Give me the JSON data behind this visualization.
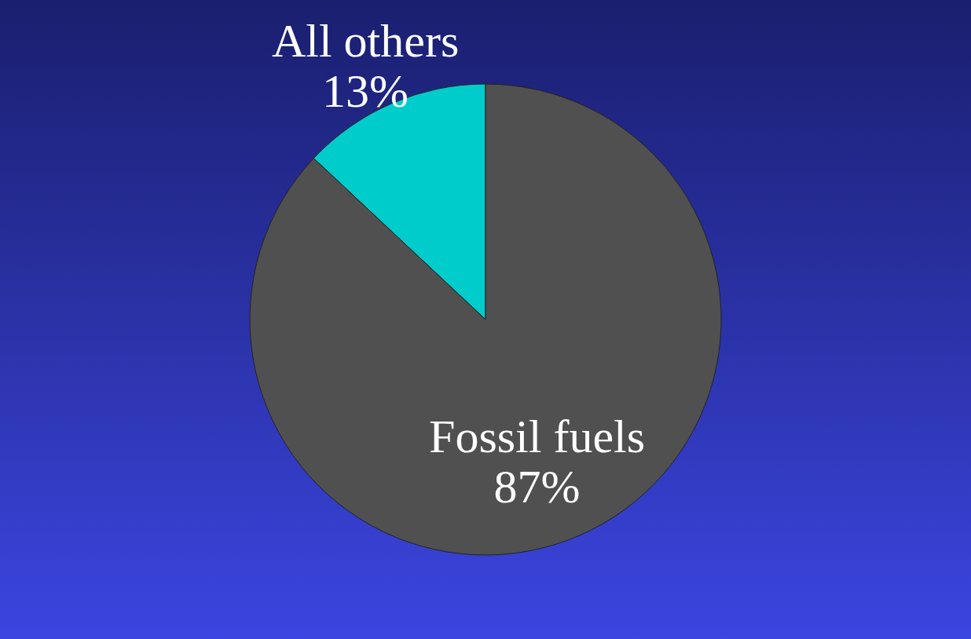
{
  "chart_data": {
    "type": "pie",
    "categories": [
      "All others",
      "Fossil fuels"
    ],
    "values": [
      13,
      87
    ],
    "value_labels": [
      "13%",
      "87%"
    ],
    "colors": [
      "#00cccc",
      "#505050"
    ]
  }
}
